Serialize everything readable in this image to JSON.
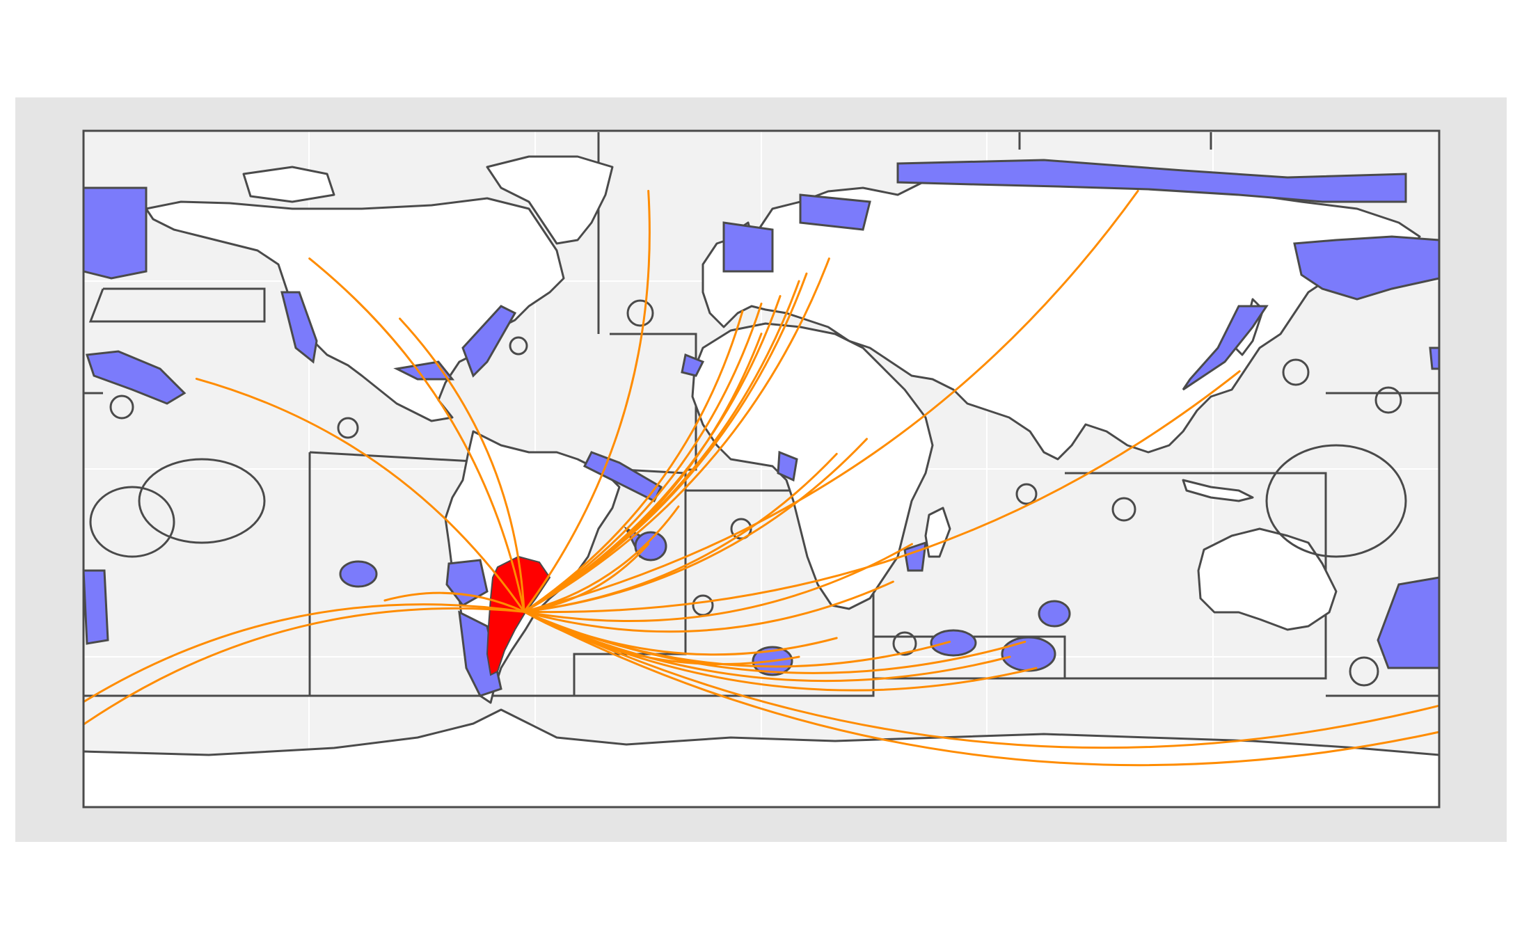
{
  "map": {
    "projection": "equirectangular",
    "lon_range": [
      -180,
      180
    ],
    "lat_range": [
      -90,
      90
    ],
    "colors": {
      "outer_background": "#e5e5e5",
      "sea": "#f2f2f2",
      "land": "#ffffff",
      "outline": "#4a4a4a",
      "eez_highlight": "#7b7bfb",
      "eez_highlight_dots": "#1a1a8c",
      "origin_country": "#ff0000",
      "flow_lines": "#ff8c00"
    },
    "origin": {
      "name": "Argentina",
      "lon": -63,
      "lat": -38
    },
    "flow_destinations": [
      {
        "lon": -120,
        "lat": 56
      },
      {
        "lon": -96,
        "lat": 40
      },
      {
        "lon": -150,
        "lat": 24
      },
      {
        "lon": -5,
        "lat": 42
      },
      {
        "lon": 0,
        "lat": 44
      },
      {
        "lon": 5,
        "lat": 46
      },
      {
        "lon": 10,
        "lat": 50
      },
      {
        "lon": 12,
        "lat": 52
      },
      {
        "lon": 18,
        "lat": 56
      },
      {
        "lon": 0,
        "lat": 36
      },
      {
        "lon": -30,
        "lat": 74
      },
      {
        "lon": 100,
        "lat": 74
      },
      {
        "lon": 20,
        "lat": 4
      },
      {
        "lon": 28,
        "lat": 8
      },
      {
        "lon": 40,
        "lat": -20
      },
      {
        "lon": 35,
        "lat": -30
      },
      {
        "lon": 10,
        "lat": -50
      },
      {
        "lon": 20,
        "lat": -45
      },
      {
        "lon": 50,
        "lat": -46
      },
      {
        "lon": 70,
        "lat": -46
      },
      {
        "lon": 73,
        "lat": -53
      },
      {
        "lon": 66,
        "lat": -50
      },
      {
        "lon": -100,
        "lat": -35
      },
      {
        "lon": 127,
        "lat": 26
      },
      {
        "lon": 180,
        "lat": -70
      },
      {
        "lon": 180,
        "lat": -63
      },
      {
        "lon": -180,
        "lat": -62
      },
      {
        "lon": -180,
        "lat": -68
      },
      {
        "lon": -30,
        "lat": -20
      },
      {
        "lon": -22,
        "lat": -10
      }
    ]
  }
}
